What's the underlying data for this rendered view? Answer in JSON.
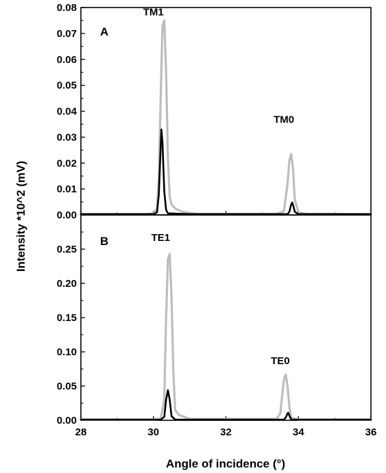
{
  "figure": {
    "xlabel": "Angle of incidence (°)",
    "ylabel": "Intensity *10^2 (mV)"
  },
  "chart_data": [
    {
      "type": "line",
      "panel": "A",
      "xlim": [
        28,
        36
      ],
      "ylim": [
        0,
        0.08
      ],
      "xticks": [
        "28",
        "30",
        "32",
        "34",
        "36"
      ],
      "yticks": [
        "0.00",
        "0.01",
        "0.02",
        "0.03",
        "0.04",
        "0.05",
        "0.06",
        "0.07",
        "0.08"
      ],
      "annotations": [
        {
          "text": "TM1",
          "x": 30.0,
          "y": 0.077
        },
        {
          "text": "TM0",
          "x": 33.6,
          "y": 0.0355
        }
      ],
      "series": [
        {
          "color": "#bdbdbd",
          "x": [
            28.0,
            29.8,
            30.0,
            30.1,
            30.15,
            30.2,
            30.25,
            30.3,
            30.35,
            30.4,
            30.45,
            30.5,
            30.6,
            30.8,
            31.2,
            33.4,
            33.6,
            33.7,
            33.75,
            33.8,
            33.85,
            33.9,
            34.0,
            34.2,
            36.0
          ],
          "y": [
            0.0003,
            0.0003,
            0.0006,
            0.0025,
            0.015,
            0.045,
            0.073,
            0.075,
            0.055,
            0.022,
            0.007,
            0.004,
            0.0025,
            0.0012,
            0.0004,
            0.0004,
            0.0015,
            0.012,
            0.021,
            0.0235,
            0.018,
            0.006,
            0.001,
            0.0004,
            0.0003
          ]
        },
        {
          "color": "#000000",
          "x": [
            28.0,
            30.0,
            30.1,
            30.15,
            30.2,
            30.22,
            30.25,
            30.3,
            30.35,
            30.4,
            31.0,
            33.7,
            33.75,
            33.8,
            33.83,
            33.86,
            33.9,
            34.0,
            36.0
          ],
          "y": [
            0.0003,
            0.0003,
            0.001,
            0.008,
            0.026,
            0.033,
            0.028,
            0.009,
            0.002,
            0.0006,
            0.0003,
            0.0003,
            0.0012,
            0.004,
            0.0048,
            0.0035,
            0.0012,
            0.0003,
            0.0003
          ]
        }
      ]
    },
    {
      "type": "line",
      "panel": "B",
      "xlim": [
        28,
        36
      ],
      "ylim": [
        0,
        0.3
      ],
      "xticks": [
        "28",
        "30",
        "32",
        "34",
        "36"
      ],
      "yticks": [
        "0.00",
        "0.05",
        "0.10",
        "0.15",
        "0.20",
        "0.25"
      ],
      "annotations": [
        {
          "text": "TE1",
          "x": 30.2,
          "y": 0.262
        },
        {
          "text": "TE0",
          "x": 33.5,
          "y": 0.082
        }
      ],
      "series": [
        {
          "color": "#bdbdbd",
          "x": [
            28.0,
            30.0,
            30.2,
            30.3,
            30.35,
            30.4,
            30.45,
            30.5,
            30.55,
            30.6,
            30.7,
            31.0,
            33.4,
            33.5,
            33.55,
            33.6,
            33.65,
            33.7,
            33.75,
            33.8,
            34.0,
            36.0
          ],
          "y": [
            0.001,
            0.001,
            0.002,
            0.03,
            0.15,
            0.235,
            0.243,
            0.18,
            0.07,
            0.015,
            0.008,
            0.002,
            0.002,
            0.01,
            0.035,
            0.06,
            0.067,
            0.05,
            0.02,
            0.004,
            0.001,
            0.001
          ]
        },
        {
          "color": "#000000",
          "x": [
            28.0,
            30.2,
            30.3,
            30.35,
            30.4,
            30.45,
            30.5,
            30.6,
            33.6,
            33.65,
            33.7,
            33.72,
            33.75,
            33.8,
            36.0
          ],
          "y": [
            0.001,
            0.001,
            0.005,
            0.03,
            0.044,
            0.03,
            0.006,
            0.001,
            0.001,
            0.004,
            0.01,
            0.011,
            0.007,
            0.001,
            0.001
          ]
        }
      ]
    }
  ]
}
